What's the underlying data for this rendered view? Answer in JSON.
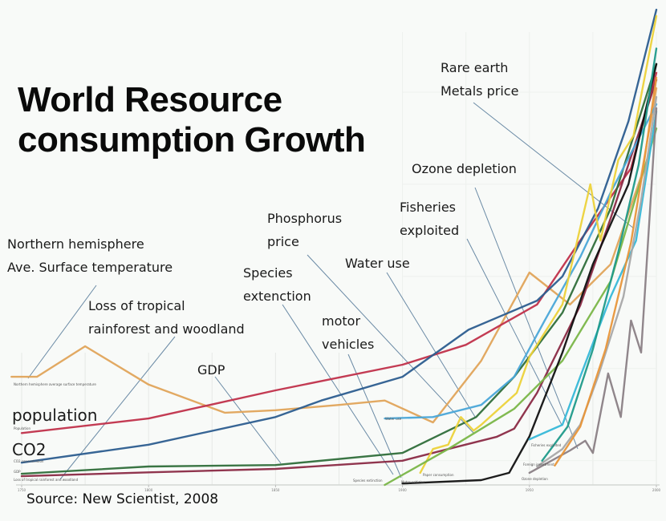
{
  "chart_data": {
    "type": "line",
    "title": "World Resource consumption Growth",
    "source": "Source: New Scientist, 2008",
    "xlabel": "",
    "ylabel": "",
    "xlim": [
      1750,
      2000
    ],
    "ylim": [
      0,
      100
    ],
    "y_units": "relative index (unlabeled axis)",
    "grid": true,
    "legend": "none (direct annotation labels)",
    "x_ticks": [
      1750,
      1800,
      1850,
      1900,
      1950,
      2000
    ],
    "x_tick_labels": [
      "1750",
      "1800",
      "1850",
      "1900",
      "1950",
      "2000"
    ],
    "series": [
      {
        "name": "Northern hemisphere average surface temperature",
        "color": "#e0a45a",
        "x": [
          1746,
          1756,
          1775,
          1800,
          1830,
          1850,
          1875,
          1893,
          1912,
          1931,
          1950,
          1966,
          1982,
          1994,
          2000
        ],
        "y": [
          22.3,
          22.3,
          28.6,
          20.7,
          14.9,
          15.4,
          16.5,
          17.4,
          12.9,
          25.6,
          43.8,
          37.2,
          45.5,
          63.6,
          81.8
        ]
      },
      {
        "name": "Population",
        "color": "#c0304a",
        "x": [
          1750,
          1800,
          1850,
          1900,
          1925,
          1953,
          1970,
          1990,
          2000
        ],
        "y": [
          10.7,
          13.7,
          19.5,
          24.8,
          28.9,
          37.2,
          50.4,
          65.3,
          85
        ]
      },
      {
        "name": "CO2 concentration",
        "color": "#2c5d8f",
        "x": [
          1750,
          1800,
          1850,
          1868,
          1900,
          1926,
          1953,
          1963,
          1977,
          1989,
          2000
        ],
        "y": [
          4.6,
          8.3,
          14,
          17.4,
          22.3,
          32,
          38,
          43,
          57,
          75,
          98
        ]
      },
      {
        "name": "GDP",
        "color": "#2f6e3a",
        "x": [
          1750,
          1800,
          1850,
          1900,
          1929,
          1944,
          1963,
          1982,
          2000
        ],
        "y": [
          2.3,
          3.8,
          4.1,
          6.6,
          14,
          22.3,
          35.5,
          57,
          86.8
        ]
      },
      {
        "name": "Loss of tropical rainforest and woodland",
        "color": "#8a2a45",
        "x": [
          1750,
          1800,
          1850,
          1900,
          1918,
          1937,
          1944,
          1953,
          1970,
          1982,
          2000
        ],
        "y": [
          1.8,
          2.6,
          3.3,
          5,
          7.4,
          9.9,
          11.6,
          19,
          37,
          55,
          83.5
        ]
      },
      {
        "name": "Water use",
        "color": "#4aa6d8",
        "x": [
          1893,
          1912,
          1931,
          1944,
          1956,
          1970,
          1982,
          2000
        ],
        "y": [
          13.7,
          14,
          16.5,
          22.3,
          33.9,
          47,
          60.3,
          78.5
        ]
      },
      {
        "name": "Paper consumption",
        "color": "#ecd23a",
        "x": [
          1907,
          1912,
          1918,
          1923,
          1928,
          1931,
          1945,
          1950,
          1963,
          1974,
          1978,
          1985,
          1991,
          2000
        ],
        "y": [
          2.5,
          7.4,
          8.3,
          14,
          11.2,
          12.4,
          19,
          26.4,
          37.2,
          62,
          50.4,
          67,
          72,
          96.7
        ]
      },
      {
        "name": "Species extinction",
        "color": "#7ab648",
        "x": [
          1893,
          1918,
          1944,
          1963,
          1982,
          2000
        ],
        "y": [
          0,
          7.4,
          15.7,
          25.6,
          42,
          73.5
        ]
      },
      {
        "name": "Motor vehicles",
        "color": "#111111",
        "x": [
          1900,
          1931,
          1942,
          1950,
          1963,
          1975,
          1989,
          2000
        ],
        "y": [
          0.3,
          1,
          2.5,
          10,
          27.3,
          45.5,
          62,
          86.8
        ]
      },
      {
        "name": "Fisheries exploited",
        "color": "#36b8d8",
        "x": [
          1950,
          1963,
          1970,
          1976,
          1982,
          1992,
          2000
        ],
        "y": [
          9.4,
          12.4,
          22.3,
          30.6,
          38.8,
          50.4,
          77
        ]
      },
      {
        "name": "Foreign direct investment",
        "color": "#a8a8a8",
        "x": [
          1953,
          1963,
          1970,
          1977,
          1987,
          1994,
          2000
        ],
        "y": [
          3.8,
          7.4,
          12.4,
          22.3,
          38.8,
          58.7,
          80
        ]
      },
      {
        "name": "Ozone depletion",
        "color": "#8a8085",
        "x": [
          1950,
          1966,
          1972,
          1975,
          1981,
          1986,
          1990,
          1994,
          2000
        ],
        "y": [
          2.5,
          7.1,
          9.1,
          6.6,
          23,
          14,
          33.9,
          27.3,
          77.7
        ]
      },
      {
        "name": "Phosphorus price",
        "color": "#1f9a8a",
        "x": [
          1955,
          1965,
          1975,
          1985,
          1993,
          2000
        ],
        "y": [
          5,
          12,
          28,
          48,
          66,
          90
        ]
      },
      {
        "name": "Rare earth metals price",
        "color": "#e8963a",
        "x": [
          1960,
          1970,
          1980,
          1990,
          1995,
          2000
        ],
        "y": [
          4,
          12,
          28,
          50,
          66,
          84
        ]
      }
    ],
    "annotations": [
      {
        "id": "rare-earth",
        "text": "Rare earth\nMetals price"
      },
      {
        "id": "ozone",
        "text": "Ozone depletion"
      },
      {
        "id": "fisheries",
        "text": "Fisheries\nexploited"
      },
      {
        "id": "phosphorus",
        "text": "Phosphorus\nprice"
      },
      {
        "id": "water",
        "text": "Water use"
      },
      {
        "id": "species",
        "text": "Species\nextenction"
      },
      {
        "id": "motor",
        "text": "motor\nvehicles"
      },
      {
        "id": "temperature",
        "text": "Northern hemisphere\nAve. Surface temperature"
      },
      {
        "id": "rainforest",
        "text": "Loss of tropical\nrainforest and woodland"
      },
      {
        "id": "gdp",
        "text": "GDP"
      },
      {
        "id": "population",
        "text": "population"
      },
      {
        "id": "co2",
        "text": "CO2"
      }
    ],
    "small_labels": {
      "temperature": "Northern hemisphere average surface temperature",
      "population": "Population",
      "co2": "CO2 concentration",
      "gdp": "GDP",
      "rainforest": "Loss of tropical rainforest and woodland",
      "water": "Water use",
      "species": "Species extinction",
      "motor": "Motor vehicles",
      "paper": "Paper consumption",
      "fisheries": "Fisheries exploited",
      "foreign": "Foreign investment",
      "ozone": "Ozone depletion"
    }
  }
}
